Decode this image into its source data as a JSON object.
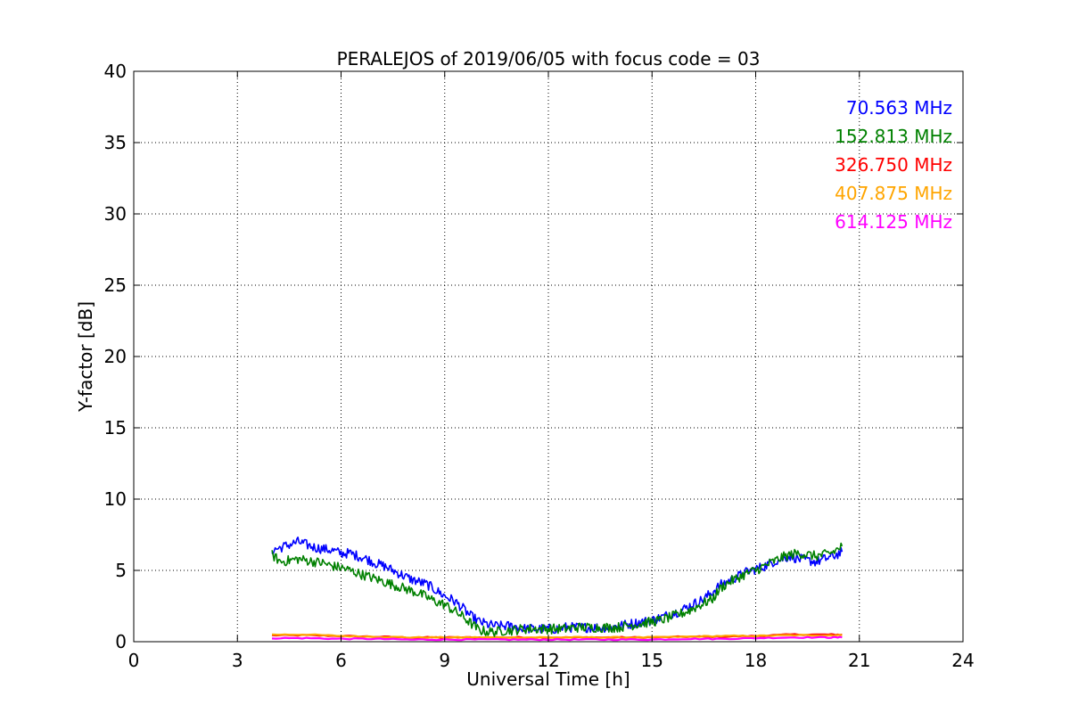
{
  "chart_data": {
    "type": "line",
    "title": "PERALEJOS of 2019/06/05 with focus code = 03",
    "xlabel": "Universal Time [h]",
    "ylabel": "Y-factor [dB]",
    "xlim": [
      0,
      24
    ],
    "ylim": [
      0,
      40
    ],
    "xticks": [
      0,
      3,
      6,
      9,
      12,
      15,
      18,
      21,
      24
    ],
    "yticks": [
      0,
      5,
      10,
      15,
      20,
      25,
      30,
      35,
      40
    ],
    "grid": true,
    "legend_position": "top-right",
    "series": [
      {
        "name": "70.563 MHz",
        "color": "#0000ff",
        "x": [
          4.0,
          4.25,
          4.5,
          4.75,
          5.0,
          5.25,
          5.5,
          5.75,
          6.0,
          6.25,
          6.5,
          6.75,
          7.0,
          7.25,
          7.5,
          7.75,
          8.0,
          8.25,
          8.5,
          8.75,
          9.0,
          9.25,
          9.5,
          9.75,
          10.0,
          10.25,
          10.5,
          10.75,
          11.0,
          11.25,
          11.5,
          11.75,
          12.0,
          12.25,
          12.5,
          12.75,
          13.0,
          13.25,
          13.5,
          13.75,
          14.0,
          14.25,
          14.5,
          14.75,
          15.0,
          15.25,
          15.5,
          15.75,
          16.0,
          16.25,
          16.5,
          16.75,
          17.0,
          17.25,
          17.5,
          17.75,
          18.0,
          18.25,
          18.5,
          18.75,
          19.0,
          19.25,
          19.5,
          19.75,
          20.0,
          20.25,
          20.5
        ],
        "y": [
          6.4,
          6.6,
          6.8,
          7.0,
          6.8,
          6.6,
          6.5,
          6.4,
          6.2,
          6.2,
          6.0,
          5.8,
          5.5,
          5.3,
          5.0,
          4.7,
          4.4,
          4.2,
          4.0,
          3.6,
          3.2,
          2.9,
          2.4,
          1.8,
          1.4,
          1.2,
          1.1,
          1.1,
          1.1,
          0.9,
          0.9,
          0.9,
          0.9,
          0.9,
          1.0,
          1.0,
          1.0,
          1.0,
          1.0,
          1.0,
          1.1,
          1.2,
          1.3,
          1.4,
          1.5,
          1.7,
          1.9,
          2.1,
          2.4,
          2.7,
          3.0,
          3.5,
          4.0,
          4.3,
          4.6,
          4.9,
          5.1,
          5.3,
          5.6,
          5.8,
          6.0,
          5.8,
          5.7,
          5.6,
          5.8,
          6.0,
          6.3
        ]
      },
      {
        "name": "152.813 MHz",
        "color": "#008000",
        "x": [
          4.0,
          4.25,
          4.5,
          4.75,
          5.0,
          5.25,
          5.5,
          5.75,
          6.0,
          6.25,
          6.5,
          6.75,
          7.0,
          7.25,
          7.5,
          7.75,
          8.0,
          8.25,
          8.5,
          8.75,
          9.0,
          9.25,
          9.5,
          9.75,
          10.0,
          10.25,
          10.5,
          10.75,
          11.0,
          11.25,
          11.5,
          11.75,
          12.0,
          12.25,
          12.5,
          12.75,
          13.0,
          13.25,
          13.5,
          13.75,
          14.0,
          14.25,
          14.5,
          14.75,
          15.0,
          15.25,
          15.5,
          15.75,
          16.0,
          16.25,
          16.5,
          16.75,
          17.0,
          17.25,
          17.5,
          17.75,
          18.0,
          18.25,
          18.5,
          18.75,
          19.0,
          19.25,
          19.5,
          19.75,
          20.0,
          20.25,
          20.5
        ],
        "y": [
          6.1,
          5.6,
          5.7,
          5.8,
          5.7,
          5.6,
          5.5,
          5.3,
          5.2,
          5.0,
          4.8,
          4.6,
          4.4,
          4.2,
          4.0,
          3.8,
          3.6,
          3.4,
          3.1,
          2.8,
          2.6,
          2.2,
          1.8,
          1.3,
          0.8,
          0.7,
          0.7,
          0.8,
          0.8,
          0.9,
          0.9,
          0.9,
          0.9,
          0.9,
          0.9,
          1.0,
          1.0,
          1.0,
          1.0,
          1.0,
          1.0,
          1.1,
          1.2,
          1.3,
          1.4,
          1.5,
          1.7,
          1.9,
          2.1,
          2.4,
          2.7,
          3.0,
          3.8,
          4.2,
          4.5,
          4.8,
          5.0,
          5.3,
          5.6,
          5.9,
          6.1,
          6.2,
          6.1,
          6.0,
          6.1,
          6.3,
          6.7
        ]
      },
      {
        "name": "326.750 MHz",
        "color": "#ff0000",
        "x": [
          4.0,
          5.0,
          6.0,
          7.0,
          8.0,
          9.0,
          10.0,
          11.0,
          12.0,
          13.0,
          14.0,
          15.0,
          16.0,
          17.0,
          18.0,
          19.0,
          20.0,
          20.5
        ],
        "y": [
          0.45,
          0.45,
          0.4,
          0.35,
          0.3,
          0.3,
          0.3,
          0.3,
          0.3,
          0.3,
          0.3,
          0.3,
          0.35,
          0.35,
          0.4,
          0.5,
          0.5,
          0.5
        ]
      },
      {
        "name": "407.875 MHz",
        "color": "#ffa500",
        "x": [
          4.0,
          5.0,
          6.0,
          7.0,
          8.0,
          9.0,
          10.0,
          11.0,
          12.0,
          13.0,
          14.0,
          15.0,
          16.0,
          17.0,
          18.0,
          19.0,
          20.0,
          20.5
        ],
        "y": [
          0.5,
          0.5,
          0.4,
          0.35,
          0.3,
          0.3,
          0.3,
          0.3,
          0.3,
          0.3,
          0.3,
          0.3,
          0.35,
          0.4,
          0.4,
          0.45,
          0.45,
          0.45
        ]
      },
      {
        "name": "614.125 MHz",
        "color": "#ff00ff",
        "x": [
          4.0,
          5.0,
          6.0,
          7.0,
          8.0,
          9.0,
          10.0,
          11.0,
          12.0,
          13.0,
          14.0,
          15.0,
          16.0,
          17.0,
          18.0,
          19.0,
          20.0,
          20.5
        ],
        "y": [
          0.25,
          0.25,
          0.2,
          0.2,
          0.15,
          0.15,
          0.15,
          0.15,
          0.15,
          0.15,
          0.15,
          0.15,
          0.2,
          0.2,
          0.25,
          0.3,
          0.3,
          0.3
        ]
      }
    ]
  }
}
